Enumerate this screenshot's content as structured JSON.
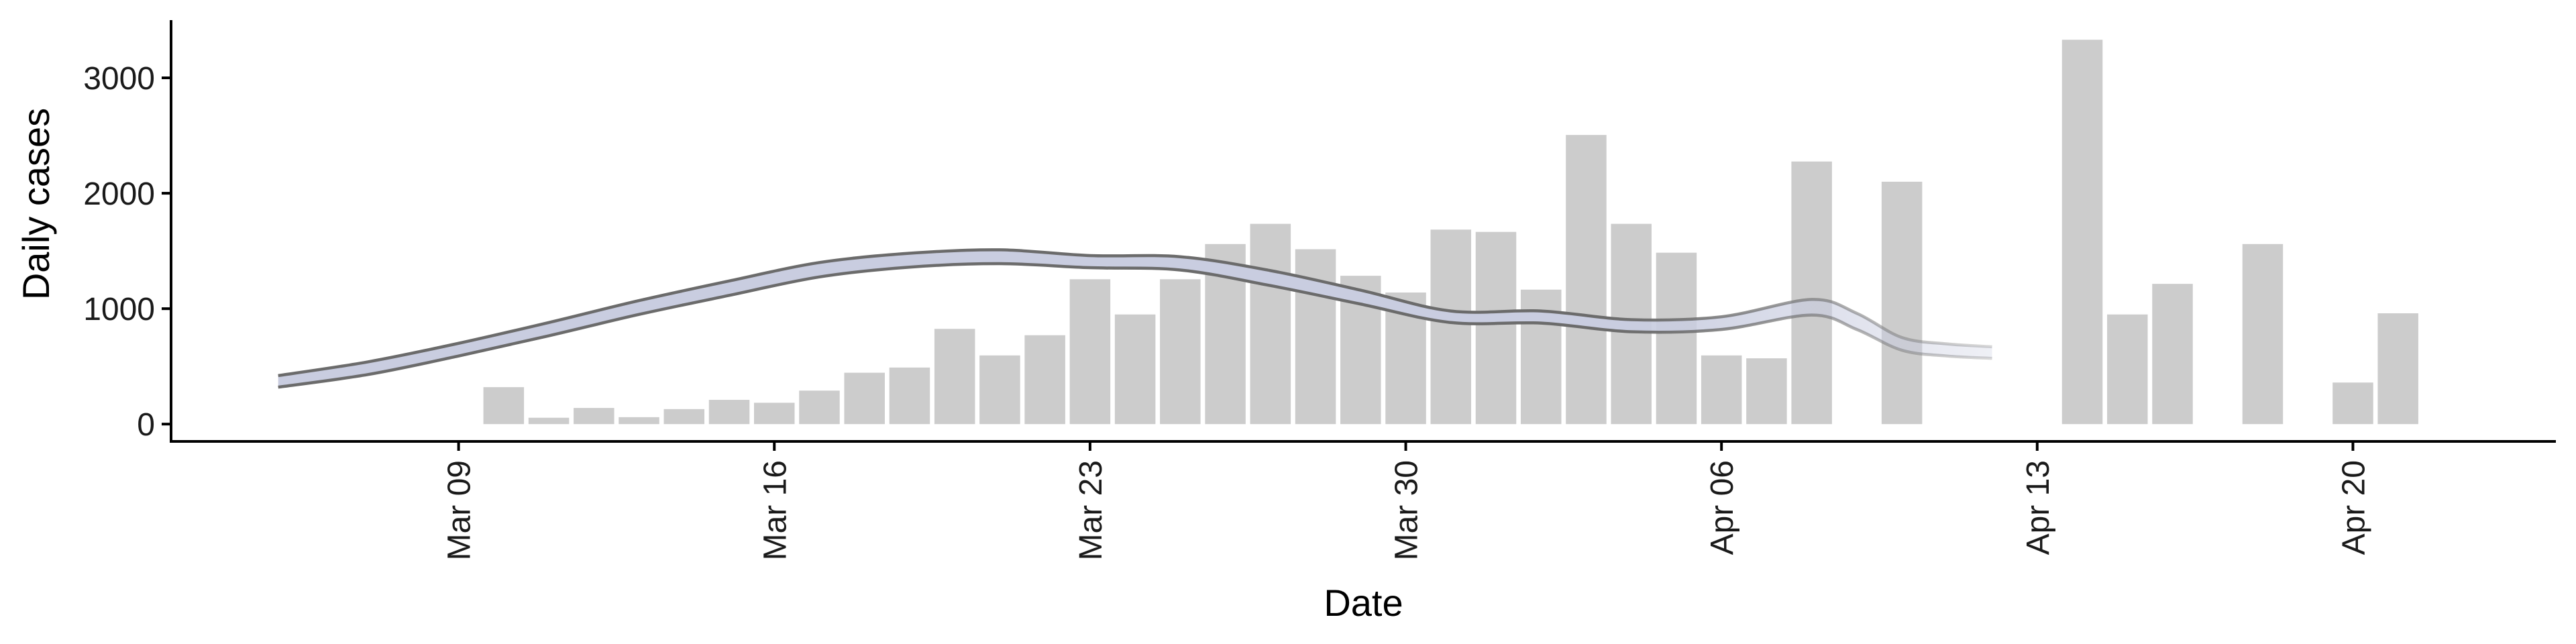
{
  "chart_data": {
    "type": "bar",
    "xlabel": "Date",
    "ylabel": "Daily cases",
    "ylim": [
      -150,
      3500
    ],
    "y_ticks": [
      0,
      1000,
      2000,
      3000
    ],
    "x_ticks": [
      {
        "date": "2020-03-09",
        "label": "Mar 09"
      },
      {
        "date": "2020-03-16",
        "label": "Mar 16"
      },
      {
        "date": "2020-03-23",
        "label": "Mar 23"
      },
      {
        "date": "2020-03-30",
        "label": "Mar 30"
      },
      {
        "date": "2020-04-06",
        "label": "Apr 06"
      },
      {
        "date": "2020-04-13",
        "label": "Apr 13"
      },
      {
        "date": "2020-04-20",
        "label": "Apr 20"
      }
    ],
    "xlim": [
      "2020-03-02 15:00",
      "2020-04-24 12:00"
    ],
    "grid": false,
    "colors": {
      "bars": "#cccccc",
      "band": "#c9cde0",
      "band_edge": "#6b6b6b"
    },
    "bars": [
      {
        "date": "2020-03-10",
        "value": 320
      },
      {
        "date": "2020-03-11",
        "value": 55
      },
      {
        "date": "2020-03-12",
        "value": 140
      },
      {
        "date": "2020-03-13",
        "value": 60
      },
      {
        "date": "2020-03-14",
        "value": 130
      },
      {
        "date": "2020-03-15",
        "value": 210
      },
      {
        "date": "2020-03-16",
        "value": 185
      },
      {
        "date": "2020-03-17",
        "value": 290
      },
      {
        "date": "2020-03-18",
        "value": 445
      },
      {
        "date": "2020-03-19",
        "value": 490
      },
      {
        "date": "2020-03-20",
        "value": 825
      },
      {
        "date": "2020-03-21",
        "value": 595
      },
      {
        "date": "2020-03-22",
        "value": 770
      },
      {
        "date": "2020-03-23",
        "value": 1255
      },
      {
        "date": "2020-03-24",
        "value": 950
      },
      {
        "date": "2020-03-25",
        "value": 1255
      },
      {
        "date": "2020-03-26",
        "value": 1560
      },
      {
        "date": "2020-03-27",
        "value": 1735
      },
      {
        "date": "2020-03-28",
        "value": 1515
      },
      {
        "date": "2020-03-29",
        "value": 1285
      },
      {
        "date": "2020-03-30",
        "value": 1140
      },
      {
        "date": "2020-03-31",
        "value": 1685
      },
      {
        "date": "2020-04-01",
        "value": 1665
      },
      {
        "date": "2020-04-02",
        "value": 1165
      },
      {
        "date": "2020-04-03",
        "value": 2505
      },
      {
        "date": "2020-04-04",
        "value": 1735
      },
      {
        "date": "2020-04-05",
        "value": 1485
      },
      {
        "date": "2020-04-06",
        "value": 595
      },
      {
        "date": "2020-04-07",
        "value": 570
      },
      {
        "date": "2020-04-08",
        "value": 2275
      },
      {
        "date": "2020-04-10",
        "value": 2100
      },
      {
        "date": "2020-04-14",
        "value": 3330
      },
      {
        "date": "2020-04-15",
        "value": 950
      },
      {
        "date": "2020-04-16",
        "value": 1215
      },
      {
        "date": "2020-04-18",
        "value": 1560
      },
      {
        "date": "2020-04-20",
        "value": 360
      },
      {
        "date": "2020-04-21",
        "value": 960
      }
    ],
    "band": [
      {
        "date": "2020-03-05",
        "upper": 420,
        "lower": 320
      },
      {
        "date": "2020-03-07",
        "upper": 540,
        "lower": 430
      },
      {
        "date": "2020-03-09",
        "upper": 700,
        "lower": 590
      },
      {
        "date": "2020-03-11",
        "upper": 880,
        "lower": 765
      },
      {
        "date": "2020-03-13",
        "upper": 1070,
        "lower": 950
      },
      {
        "date": "2020-03-15",
        "upper": 1240,
        "lower": 1115
      },
      {
        "date": "2020-03-17",
        "upper": 1400,
        "lower": 1275
      },
      {
        "date": "2020-03-19",
        "upper": 1480,
        "lower": 1360
      },
      {
        "date": "2020-03-21",
        "upper": 1510,
        "lower": 1390
      },
      {
        "date": "2020-03-23",
        "upper": 1460,
        "lower": 1355
      },
      {
        "date": "2020-03-25",
        "upper": 1450,
        "lower": 1335
      },
      {
        "date": "2020-03-27",
        "upper": 1330,
        "lower": 1200
      },
      {
        "date": "2020-03-29",
        "upper": 1160,
        "lower": 1040
      },
      {
        "date": "2020-03-31",
        "upper": 980,
        "lower": 880
      },
      {
        "date": "2020-04-02",
        "upper": 980,
        "lower": 875
      },
      {
        "date": "2020-04-04",
        "upper": 905,
        "lower": 800
      },
      {
        "date": "2020-04-06",
        "upper": 930,
        "lower": 820
      },
      {
        "date": "2020-04-08",
        "upper": 1080,
        "lower": 945
      },
      {
        "date": "2020-04-09",
        "upper": 960,
        "lower": 820
      },
      {
        "date": "2020-04-10",
        "upper": 750,
        "lower": 640
      },
      {
        "date": "2020-04-11",
        "upper": 695,
        "lower": 590
      },
      {
        "date": "2020-04-12",
        "upper": 670,
        "lower": 570
      }
    ],
    "band_solid_until": "2020-04-08"
  }
}
